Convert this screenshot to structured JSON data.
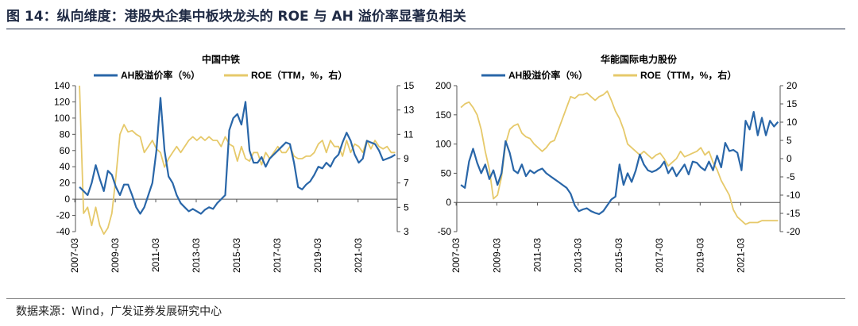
{
  "figure_title": "图 14：纵向维度：港股央企集中板块龙头的 ROE 与 AH 溢价率显著负相关",
  "source": "数据来源：Wind，广发证券发展研究中心",
  "colors": {
    "ah": "#2966a8",
    "roe": "#e6c96a",
    "title": "#1f2a44"
  },
  "chart_data": [
    {
      "type": "line",
      "title": "中国中铁",
      "legend": {
        "position": "top",
        "entries": [
          "AH股溢价率（%）",
          "ROE（TTM，%，右）"
        ]
      },
      "x_ticks": [
        "2007-03",
        "2009-03",
        "2011-03",
        "2013-03",
        "2015-03",
        "2017-03",
        "2019-03",
        "2021-03"
      ],
      "x_range": [
        2007.2,
        2023.1
      ],
      "y_left": {
        "ticks": [
          "140",
          "120",
          "100",
          "80",
          "60",
          "40",
          "20",
          "0",
          "-20",
          "-40"
        ],
        "range": [
          -40,
          140
        ]
      },
      "y_right": {
        "ticks": [
          "15",
          "13",
          "11",
          "9",
          "7",
          "5",
          "3"
        ],
        "range": [
          3,
          15
        ]
      },
      "series": [
        {
          "name": "AH股溢价率（%）",
          "axis": "left",
          "x": [
            2007.4,
            2007.6,
            2007.8,
            2008.0,
            2008.2,
            2008.4,
            2008.6,
            2008.8,
            2009.0,
            2009.2,
            2009.4,
            2009.6,
            2009.8,
            2010.0,
            2010.2,
            2010.4,
            2010.6,
            2010.8,
            2011.0,
            2011.2,
            2011.4,
            2011.6,
            2011.8,
            2012.0,
            2012.2,
            2012.4,
            2012.6,
            2012.8,
            2013.0,
            2013.2,
            2013.4,
            2013.6,
            2013.8,
            2014.0,
            2014.2,
            2014.4,
            2014.6,
            2014.8,
            2015.0,
            2015.2,
            2015.4,
            2015.6,
            2015.8,
            2016.0,
            2016.2,
            2016.4,
            2016.6,
            2016.8,
            2017.0,
            2017.2,
            2017.4,
            2017.6,
            2017.8,
            2018.0,
            2018.2,
            2018.4,
            2018.6,
            2018.8,
            2019.0,
            2019.2,
            2019.4,
            2019.6,
            2019.8,
            2020.0,
            2020.2,
            2020.4,
            2020.6,
            2020.8,
            2021.0,
            2021.2,
            2021.4,
            2021.6,
            2021.8,
            2022.0,
            2022.2,
            2022.4,
            2022.6,
            2022.8,
            2023.0
          ],
          "values": [
            15,
            10,
            5,
            20,
            42,
            25,
            10,
            35,
            30,
            15,
            5,
            18,
            18,
            5,
            -10,
            -18,
            -10,
            5,
            20,
            60,
            125,
            60,
            28,
            20,
            5,
            -5,
            -10,
            -15,
            -12,
            -15,
            -18,
            -13,
            -10,
            -12,
            -5,
            0,
            5,
            85,
            100,
            105,
            92,
            120,
            60,
            45,
            45,
            52,
            40,
            50,
            55,
            60,
            65,
            70,
            68,
            45,
            15,
            12,
            18,
            22,
            30,
            40,
            38,
            45,
            40,
            50,
            55,
            70,
            82,
            72,
            55,
            45,
            50,
            72,
            70,
            68,
            60,
            48,
            50,
            52,
            55
          ]
        },
        {
          "name": "ROE（TTM，%，右）",
          "axis": "right",
          "x": [
            2007.4,
            2007.6,
            2007.8,
            2008.0,
            2008.2,
            2008.4,
            2008.6,
            2008.8,
            2009.0,
            2009.2,
            2009.4,
            2009.6,
            2009.8,
            2010.0,
            2010.2,
            2010.4,
            2010.6,
            2010.8,
            2011.0,
            2011.2,
            2011.4,
            2011.6,
            2011.8,
            2012.0,
            2012.2,
            2012.4,
            2012.6,
            2012.8,
            2013.0,
            2013.2,
            2013.4,
            2013.6,
            2013.8,
            2014.0,
            2014.2,
            2014.4,
            2014.6,
            2014.8,
            2015.0,
            2015.2,
            2015.4,
            2015.6,
            2015.8,
            2016.0,
            2016.2,
            2016.4,
            2016.6,
            2016.8,
            2017.0,
            2017.2,
            2017.4,
            2017.6,
            2017.8,
            2018.0,
            2018.2,
            2018.4,
            2018.6,
            2018.8,
            2019.0,
            2019.2,
            2019.4,
            2019.6,
            2019.8,
            2020.0,
            2020.2,
            2020.4,
            2020.6,
            2020.8,
            2021.0,
            2021.2,
            2021.4,
            2021.6,
            2021.8,
            2022.0,
            2022.2,
            2022.4,
            2022.6,
            2022.8,
            2023.0
          ],
          "values": [
            15,
            4.5,
            5,
            3.5,
            5,
            3.5,
            2.8,
            3.3,
            4.5,
            7.5,
            11,
            11.8,
            11.2,
            11.3,
            11,
            10.8,
            9.5,
            10,
            10.5,
            9.8,
            9.5,
            8.3,
            9,
            9.5,
            10,
            9.5,
            10,
            10.5,
            10.8,
            10.5,
            10.8,
            10.5,
            10.8,
            10.5,
            10.5,
            10,
            10.8,
            10.2,
            10,
            8.8,
            10,
            9,
            8.8,
            9.5,
            9.5,
            8.5,
            9.5,
            9,
            9.5,
            10,
            9.5,
            9.5,
            10,
            9.2,
            9,
            9,
            9.2,
            9.2,
            9.5,
            10.2,
            10.5,
            9.5,
            10.5,
            10,
            10,
            9.2,
            10.5,
            9.5,
            10.2,
            10,
            9.5,
            10.5,
            9.8,
            10.5,
            10,
            9.8,
            10,
            9.5,
            9.5
          ]
        }
      ]
    },
    {
      "type": "line",
      "title": "华能国际电力股份",
      "legend": {
        "position": "top",
        "entries": [
          "AH股溢价率（%）",
          "ROE（TTM，%，右）"
        ]
      },
      "x_ticks": [
        "2007-03",
        "2009-03",
        "2011-03",
        "2013-03",
        "2015-03",
        "2017-03",
        "2019-03",
        "2021-03"
      ],
      "x_range": [
        2007.2,
        2023.1
      ],
      "y_left": {
        "ticks": [
          "200",
          "150",
          "100",
          "50",
          "0",
          "-50"
        ],
        "range": [
          -50,
          200
        ]
      },
      "y_right": {
        "ticks": [
          "20",
          "15",
          "10",
          "5",
          "0",
          "-5",
          "-10",
          "-15",
          "-20"
        ],
        "range": [
          -20,
          20
        ]
      },
      "series": [
        {
          "name": "AH股溢价率（%）",
          "axis": "left",
          "x": [
            2007.4,
            2007.6,
            2007.8,
            2008.0,
            2008.2,
            2008.4,
            2008.6,
            2008.8,
            2009.0,
            2009.2,
            2009.4,
            2009.6,
            2009.8,
            2010.0,
            2010.2,
            2010.4,
            2010.6,
            2010.8,
            2011.0,
            2011.2,
            2011.4,
            2011.6,
            2011.8,
            2012.0,
            2012.2,
            2012.4,
            2012.6,
            2012.8,
            2013.0,
            2013.2,
            2013.4,
            2013.6,
            2013.8,
            2014.0,
            2014.2,
            2014.4,
            2014.6,
            2014.8,
            2015.0,
            2015.2,
            2015.4,
            2015.6,
            2015.8,
            2016.0,
            2016.2,
            2016.4,
            2016.6,
            2016.8,
            2017.0,
            2017.2,
            2017.4,
            2017.6,
            2017.8,
            2018.0,
            2018.2,
            2018.4,
            2018.6,
            2018.8,
            2019.0,
            2019.2,
            2019.4,
            2019.6,
            2019.8,
            2020.0,
            2020.2,
            2020.4,
            2020.6,
            2020.8,
            2021.0,
            2021.2,
            2021.4,
            2021.6,
            2021.8,
            2022.0,
            2022.2,
            2022.4,
            2022.6,
            2022.8,
            2023.0
          ],
          "values": [
            30,
            25,
            70,
            92,
            68,
            50,
            65,
            40,
            55,
            30,
            50,
            105,
            85,
            55,
            50,
            65,
            45,
            55,
            50,
            55,
            58,
            50,
            45,
            40,
            35,
            30,
            25,
            15,
            -5,
            -15,
            -12,
            -10,
            -15,
            -18,
            -20,
            -15,
            -5,
            5,
            10,
            65,
            30,
            50,
            35,
            55,
            82,
            65,
            55,
            52,
            55,
            60,
            70,
            50,
            60,
            45,
            55,
            65,
            48,
            70,
            68,
            60,
            55,
            70,
            55,
            80,
            60,
            102,
            88,
            90,
            85,
            55,
            140,
            125,
            155,
            115,
            145,
            115,
            140,
            130,
            138
          ]
        },
        {
          "name": "ROE（TTM，%，右）",
          "axis": "right",
          "x": [
            2007.4,
            2007.6,
            2007.8,
            2008.0,
            2008.2,
            2008.4,
            2008.6,
            2008.8,
            2009.0,
            2009.2,
            2009.4,
            2009.6,
            2009.8,
            2010.0,
            2010.2,
            2010.4,
            2010.6,
            2010.8,
            2011.0,
            2011.2,
            2011.4,
            2011.6,
            2011.8,
            2012.0,
            2012.2,
            2012.4,
            2012.6,
            2012.8,
            2013.0,
            2013.2,
            2013.4,
            2013.6,
            2013.8,
            2014.0,
            2014.2,
            2014.4,
            2014.6,
            2014.8,
            2015.0,
            2015.2,
            2015.4,
            2015.6,
            2015.8,
            2016.0,
            2016.2,
            2016.4,
            2016.6,
            2016.8,
            2017.0,
            2017.2,
            2017.4,
            2017.6,
            2017.8,
            2018.0,
            2018.2,
            2018.4,
            2018.6,
            2018.8,
            2019.0,
            2019.2,
            2019.4,
            2019.6,
            2019.8,
            2020.0,
            2020.2,
            2020.4,
            2020.6,
            2020.8,
            2021.0,
            2021.2,
            2021.4,
            2021.6,
            2021.8,
            2022.0,
            2022.2,
            2022.4,
            2022.6,
            2022.8,
            2023.0
          ],
          "values": [
            14,
            15,
            15.5,
            14,
            12,
            8,
            2,
            -3,
            -11,
            -10,
            -5,
            4,
            8,
            9,
            9.5,
            7,
            6,
            5.5,
            4,
            3,
            2,
            3,
            4.5,
            5,
            8,
            11,
            14,
            17,
            16.5,
            17.5,
            17.5,
            18,
            17,
            16,
            17,
            17.5,
            18.5,
            16,
            13,
            11,
            8,
            4,
            3,
            2,
            1,
            2,
            1,
            0,
            1,
            1.5,
            0,
            -2,
            -1,
            0,
            2,
            0.5,
            1,
            1.5,
            2,
            3,
            1,
            2,
            -1,
            -3,
            -6,
            -8,
            -10,
            -14,
            -16,
            -17,
            -18,
            -17.5,
            -17.5,
            -17.5,
            -17,
            -17,
            -17,
            -17,
            -17
          ]
        }
      ]
    }
  ]
}
